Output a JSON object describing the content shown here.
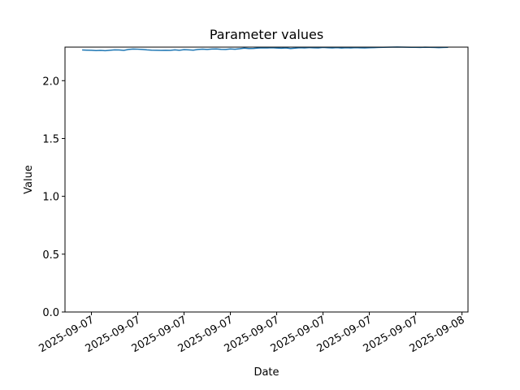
{
  "chart_data": {
    "type": "line",
    "title": "Parameter values",
    "xlabel": "Date",
    "ylabel": "Value",
    "series": [
      {
        "color": "#1f77b4",
        "values": [
          2.265,
          2.264,
          2.263,
          2.26,
          2.262,
          2.259,
          2.263,
          2.266,
          2.265,
          2.262,
          2.27,
          2.273,
          2.272,
          2.27,
          2.266,
          2.264,
          2.263,
          2.262,
          2.263,
          2.262,
          2.266,
          2.263,
          2.268,
          2.266,
          2.264,
          2.27,
          2.272,
          2.27,
          2.273,
          2.274,
          2.271,
          2.27,
          2.274,
          2.272,
          2.276,
          2.281,
          2.278,
          2.279,
          2.282,
          2.284,
          2.283,
          2.285,
          2.282,
          2.28,
          2.283,
          2.278,
          2.281,
          2.285,
          2.283,
          2.286,
          2.284,
          2.283,
          2.287,
          2.285,
          2.283,
          2.286,
          2.282,
          2.285,
          2.283,
          2.286,
          2.284,
          2.283,
          2.285,
          2.286,
          2.287,
          2.288,
          2.289,
          2.29,
          2.291,
          2.29,
          2.289,
          2.288,
          2.288,
          2.287,
          2.289,
          2.288,
          2.287,
          2.286,
          2.287,
          2.288
        ]
      }
    ],
    "xlim": [
      -3.7,
      83.3
    ],
    "xticks": [
      {
        "value": 2,
        "label": "2025-09-07"
      },
      {
        "value": 12,
        "label": "2025-09-07"
      },
      {
        "value": 22,
        "label": "2025-09-07"
      },
      {
        "value": 32,
        "label": "2025-09-07"
      },
      {
        "value": 42,
        "label": "2025-09-07"
      },
      {
        "value": 52,
        "label": "2025-09-07"
      },
      {
        "value": 62,
        "label": "2025-09-07"
      },
      {
        "value": 72,
        "label": "2025-09-07"
      },
      {
        "value": 82,
        "label": "2025-09-08"
      }
    ],
    "ylim": [
      0,
      2.29
    ],
    "yticks": [
      {
        "value": 0,
        "label": "0.0"
      },
      0.5,
      {
        "value": 1,
        "label": "1.0"
      },
      1.5,
      {
        "value": 2,
        "label": "2.0"
      }
    ]
  }
}
